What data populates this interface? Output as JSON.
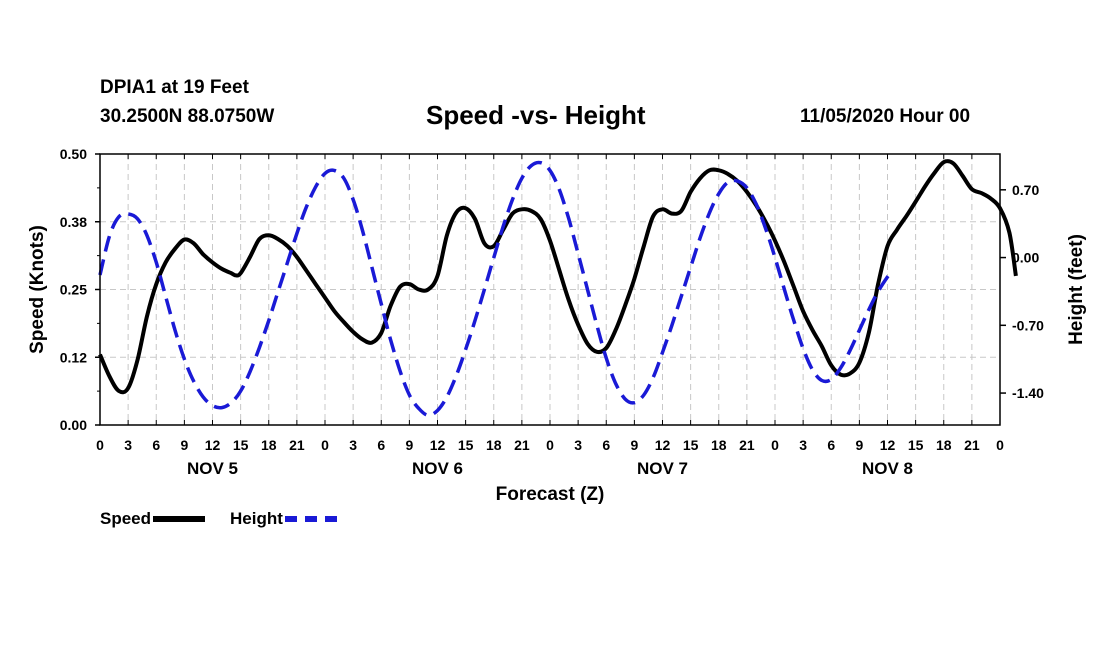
{
  "header": {
    "station": "DPIA1 at 19 Feet",
    "coordinates": "30.2500N 88.0750W",
    "title": "Speed -vs- Height",
    "run_time": "11/05/2020 Hour 00"
  },
  "legend": {
    "speed_label": "Speed",
    "height_label": "Height"
  },
  "colors": {
    "speed": "#000000",
    "height": "#1a1ad6",
    "grid": "#c8c8c8"
  },
  "chart_data": {
    "type": "line",
    "title": "Speed -vs- Height",
    "xlabel": "Forecast (Z)",
    "ylabel": "Speed (Knots)",
    "y2label": "Height (feet)",
    "xlim": [
      0,
      96
    ],
    "ylim": [
      0,
      0.5
    ],
    "y2lim": [
      -1.73,
      1.07
    ],
    "x_ticks": [
      0,
      3,
      6,
      9,
      12,
      15,
      18,
      21,
      24,
      27,
      30,
      33,
      36,
      39,
      42,
      45,
      48,
      51,
      54,
      57,
      60,
      63,
      66,
      69,
      72,
      75,
      78,
      81,
      84,
      87,
      90,
      93,
      96
    ],
    "x_tick_labels": [
      "0",
      "3",
      "6",
      "9",
      "12",
      "15",
      "18",
      "21",
      "0",
      "3",
      "6",
      "9",
      "12",
      "15",
      "18",
      "21",
      "0",
      "3",
      "6",
      "9",
      "12",
      "15",
      "18",
      "21",
      "0",
      "3",
      "6",
      "9",
      "12",
      "15",
      "18",
      "21",
      "0"
    ],
    "day_labels": [
      {
        "x": 12,
        "label": "NOV 5"
      },
      {
        "x": 36,
        "label": "NOV 6"
      },
      {
        "x": 60,
        "label": "NOV 7"
      },
      {
        "x": 84,
        "label": "NOV 8"
      }
    ],
    "y_ticks": [
      0.0,
      0.125,
      0.25,
      0.375,
      0.5
    ],
    "y_tick_labels": [
      "0.00",
      "0.12",
      "0.25",
      "0.38",
      "0.50"
    ],
    "y2_ticks": [
      0.7,
      0.0,
      -0.7,
      -1.4
    ],
    "y2_tick_labels": [
      "0.70",
      "0.00",
      "-0.70",
      "-1.40"
    ],
    "grid": true,
    "series": [
      {
        "name": "Speed",
        "axis": "left",
        "style": "solid",
        "points": [
          [
            0,
            0.13
          ],
          [
            1,
            0.09
          ],
          [
            2,
            0.063
          ],
          [
            3,
            0.068
          ],
          [
            4,
            0.12
          ],
          [
            5,
            0.2
          ],
          [
            6,
            0.26
          ],
          [
            7,
            0.3
          ],
          [
            8,
            0.325
          ],
          [
            9,
            0.342
          ],
          [
            10,
            0.335
          ],
          [
            11,
            0.315
          ],
          [
            12,
            0.3
          ],
          [
            13,
            0.288
          ],
          [
            14,
            0.28
          ],
          [
            14.5,
            0.276
          ],
          [
            15,
            0.28
          ],
          [
            16,
            0.31
          ],
          [
            17,
            0.343
          ],
          [
            18,
            0.35
          ],
          [
            19,
            0.343
          ],
          [
            20,
            0.33
          ],
          [
            21,
            0.31
          ],
          [
            22,
            0.285
          ],
          [
            23,
            0.26
          ],
          [
            24,
            0.235
          ],
          [
            25,
            0.21
          ],
          [
            26,
            0.19
          ],
          [
            27,
            0.172
          ],
          [
            28,
            0.158
          ],
          [
            29,
            0.152
          ],
          [
            30,
            0.17
          ],
          [
            31,
            0.22
          ],
          [
            32,
            0.255
          ],
          [
            33,
            0.26
          ],
          [
            34,
            0.25
          ],
          [
            35,
            0.25
          ],
          [
            36,
            0.275
          ],
          [
            37,
            0.35
          ],
          [
            38,
            0.392
          ],
          [
            39,
            0.4
          ],
          [
            40,
            0.38
          ],
          [
            41,
            0.335
          ],
          [
            42,
            0.33
          ],
          [
            43,
            0.36
          ],
          [
            44,
            0.39
          ],
          [
            45,
            0.398
          ],
          [
            46,
            0.395
          ],
          [
            47,
            0.38
          ],
          [
            48,
            0.34
          ],
          [
            49,
            0.285
          ],
          [
            50,
            0.23
          ],
          [
            51,
            0.185
          ],
          [
            52,
            0.15
          ],
          [
            53,
            0.135
          ],
          [
            54,
            0.142
          ],
          [
            55,
            0.175
          ],
          [
            56,
            0.22
          ],
          [
            57,
            0.27
          ],
          [
            58,
            0.33
          ],
          [
            59,
            0.385
          ],
          [
            60,
            0.398
          ],
          [
            61,
            0.39
          ],
          [
            62,
            0.395
          ],
          [
            63,
            0.43
          ],
          [
            64,
            0.455
          ],
          [
            65,
            0.47
          ],
          [
            66,
            0.47
          ],
          [
            67,
            0.463
          ],
          [
            68,
            0.45
          ],
          [
            69,
            0.43
          ],
          [
            70,
            0.405
          ],
          [
            71,
            0.375
          ],
          [
            72,
            0.34
          ],
          [
            73,
            0.3
          ],
          [
            74,
            0.255
          ],
          [
            75,
            0.21
          ],
          [
            76,
            0.175
          ],
          [
            77,
            0.145
          ],
          [
            78,
            0.11
          ],
          [
            79,
            0.093
          ],
          [
            80,
            0.095
          ],
          [
            81,
            0.115
          ],
          [
            82,
            0.17
          ],
          [
            83,
            0.26
          ],
          [
            84,
            0.33
          ],
          [
            85,
            0.36
          ],
          [
            86,
            0.385
          ],
          [
            87,
            0.412
          ],
          [
            88,
            0.44
          ],
          [
            89,
            0.465
          ],
          [
            90,
            0.485
          ],
          [
            91,
            0.483
          ],
          [
            92,
            0.46
          ],
          [
            93,
            0.435
          ],
          [
            94,
            0.428
          ],
          [
            95,
            0.418
          ],
          [
            96,
            0.4
          ],
          [
            97,
            0.355
          ],
          [
            97.7,
            0.275
          ]
        ]
      },
      {
        "name": "Height",
        "axis": "right",
        "style": "dashed",
        "points": [
          [
            0,
            -0.18
          ],
          [
            1,
            0.22
          ],
          [
            2,
            0.42
          ],
          [
            3,
            0.45
          ],
          [
            4,
            0.4
          ],
          [
            5,
            0.23
          ],
          [
            6,
            -0.05
          ],
          [
            7,
            -0.4
          ],
          [
            8,
            -0.75
          ],
          [
            9,
            -1.05
          ],
          [
            10,
            -1.28
          ],
          [
            11,
            -1.44
          ],
          [
            12,
            -1.53
          ],
          [
            13,
            -1.55
          ],
          [
            14,
            -1.5
          ],
          [
            15,
            -1.38
          ],
          [
            16,
            -1.18
          ],
          [
            17,
            -0.93
          ],
          [
            18,
            -0.65
          ],
          [
            19,
            -0.35
          ],
          [
            20,
            -0.05
          ],
          [
            21,
            0.25
          ],
          [
            22,
            0.52
          ],
          [
            23,
            0.73
          ],
          [
            24,
            0.87
          ],
          [
            25,
            0.9
          ],
          [
            26,
            0.82
          ],
          [
            27,
            0.6
          ],
          [
            28,
            0.28
          ],
          [
            29,
            -0.1
          ],
          [
            30,
            -0.48
          ],
          [
            31,
            -0.85
          ],
          [
            32,
            -1.17
          ],
          [
            33,
            -1.42
          ],
          [
            34,
            -1.56
          ],
          [
            35,
            -1.63
          ],
          [
            36,
            -1.58
          ],
          [
            37,
            -1.44
          ],
          [
            38,
            -1.22
          ],
          [
            39,
            -0.95
          ],
          [
            40,
            -0.65
          ],
          [
            41,
            -0.33
          ],
          [
            42,
            0.0
          ],
          [
            43,
            0.32
          ],
          [
            44,
            0.6
          ],
          [
            45,
            0.82
          ],
          [
            46,
            0.95
          ],
          [
            47,
            0.98
          ],
          [
            48,
            0.9
          ],
          [
            49,
            0.7
          ],
          [
            50,
            0.4
          ],
          [
            51,
            0.04
          ],
          [
            52,
            -0.33
          ],
          [
            53,
            -0.7
          ],
          [
            54,
            -1.04
          ],
          [
            55,
            -1.3
          ],
          [
            56,
            -1.46
          ],
          [
            57,
            -1.5
          ],
          [
            58,
            -1.42
          ],
          [
            59,
            -1.24
          ],
          [
            60,
            -0.98
          ],
          [
            61,
            -0.7
          ],
          [
            62,
            -0.4
          ],
          [
            63,
            -0.1
          ],
          [
            64,
            0.2
          ],
          [
            65,
            0.46
          ],
          [
            66,
            0.66
          ],
          [
            67,
            0.78
          ],
          [
            68,
            0.79
          ],
          [
            69,
            0.72
          ],
          [
            70,
            0.55
          ],
          [
            71,
            0.3
          ],
          [
            72,
            0.0
          ],
          [
            73,
            -0.33
          ],
          [
            74,
            -0.65
          ],
          [
            75,
            -0.94
          ],
          [
            76,
            -1.16
          ],
          [
            77,
            -1.27
          ],
          [
            78,
            -1.26
          ],
          [
            79,
            -1.14
          ],
          [
            80,
            -0.96
          ],
          [
            81,
            -0.75
          ],
          [
            82,
            -0.54
          ],
          [
            83,
            -0.35
          ],
          [
            84,
            -0.2
          ],
          [
            84.4,
            -0.15
          ]
        ]
      }
    ]
  }
}
